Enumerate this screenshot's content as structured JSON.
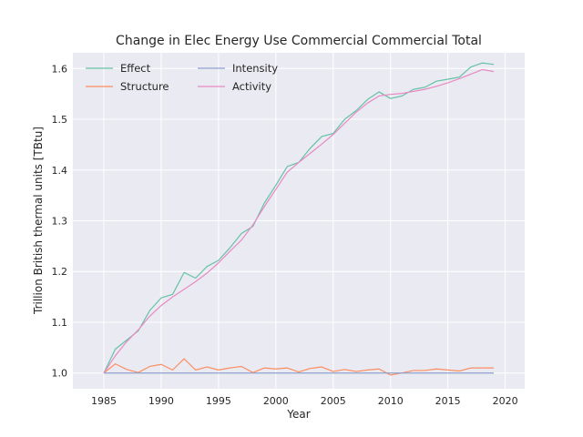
{
  "chart_data": {
    "type": "line",
    "title": "Change in Elec Energy Use Commercial Commercial Total",
    "xlabel": "Year",
    "ylabel": "Trillion British thermal units [TBtu]",
    "xlim": [
      1982.3,
      2021.7
    ],
    "ylim": [
      0.969,
      1.631
    ],
    "xticks": [
      1985,
      1990,
      1995,
      2000,
      2005,
      2010,
      2015,
      2020
    ],
    "xtick_labels": [
      "1985",
      "1990",
      "1995",
      "2000",
      "2005",
      "2010",
      "2015",
      "2020"
    ],
    "yticks": [
      1.0,
      1.1,
      1.2,
      1.3,
      1.4,
      1.5,
      1.6
    ],
    "ytick_labels": [
      "1.0",
      "1.1",
      "1.2",
      "1.3",
      "1.4",
      "1.5",
      "1.6"
    ],
    "grid": true,
    "legend_position": "top-left",
    "x": [
      1985,
      1986,
      1987,
      1988,
      1989,
      1990,
      1991,
      1992,
      1993,
      1994,
      1995,
      1996,
      1997,
      1998,
      1999,
      2000,
      2001,
      2002,
      2003,
      2004,
      2005,
      2006,
      2007,
      2008,
      2009,
      2010,
      2011,
      2012,
      2013,
      2014,
      2015,
      2016,
      2017,
      2018,
      2019
    ],
    "series": [
      {
        "name": "Effect",
        "color": "#66c2a5",
        "values": [
          1.0,
          1.047,
          1.065,
          1.083,
          1.123,
          1.148,
          1.155,
          1.198,
          1.187,
          1.21,
          1.222,
          1.247,
          1.275,
          1.289,
          1.335,
          1.37,
          1.407,
          1.415,
          1.443,
          1.466,
          1.472,
          1.5,
          1.517,
          1.539,
          1.554,
          1.541,
          1.546,
          1.559,
          1.563,
          1.575,
          1.579,
          1.583,
          1.603,
          1.611,
          1.608
        ]
      },
      {
        "name": "Structure",
        "color": "#fc8d62",
        "values": [
          1.0,
          1.018,
          1.007,
          1.001,
          1.013,
          1.017,
          1.006,
          1.028,
          1.006,
          1.012,
          1.006,
          1.01,
          1.013,
          1.001,
          1.01,
          1.008,
          1.01,
          1.002,
          1.009,
          1.012,
          1.003,
          1.007,
          1.003,
          1.006,
          1.008,
          0.996,
          1.0,
          1.005,
          1.005,
          1.008,
          1.006,
          1.004,
          1.01,
          1.01,
          1.01
        ]
      },
      {
        "name": "Intensity",
        "color": "#8da0cb",
        "values": [
          1.0,
          1.0,
          1.0,
          1.0,
          1.0,
          1.0,
          1.0,
          1.0,
          1.0,
          1.0,
          1.0,
          1.0,
          1.0,
          1.0,
          1.0,
          1.0,
          1.0,
          1.0,
          1.0,
          1.0,
          1.0,
          1.0,
          1.0,
          1.0,
          1.0,
          1.0,
          1.0,
          1.0,
          1.0,
          1.0,
          1.0,
          1.0,
          1.0,
          1.0,
          1.0
        ]
      },
      {
        "name": "Activity",
        "color": "#e78ac3",
        "values": [
          1.0,
          1.034,
          1.062,
          1.085,
          1.112,
          1.133,
          1.15,
          1.165,
          1.18,
          1.197,
          1.217,
          1.24,
          1.262,
          1.292,
          1.328,
          1.362,
          1.396,
          1.415,
          1.433,
          1.451,
          1.47,
          1.492,
          1.514,
          1.532,
          1.546,
          1.549,
          1.551,
          1.555,
          1.559,
          1.565,
          1.572,
          1.58,
          1.589,
          1.598,
          1.594
        ]
      }
    ]
  }
}
